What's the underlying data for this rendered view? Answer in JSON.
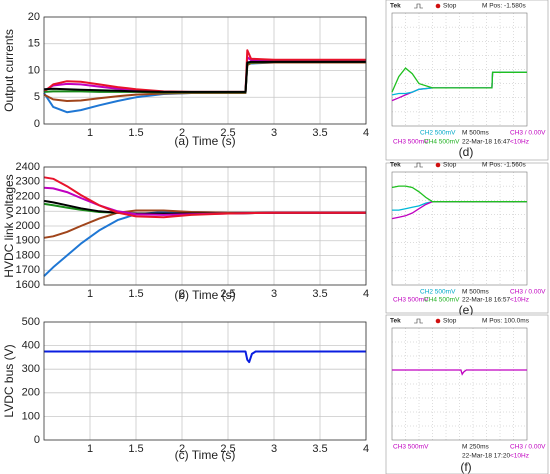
{
  "chart_data": [
    {
      "type": "line",
      "ylabel": "Output currents",
      "xlabel": "(a) Time (s)",
      "xlim": [
        0.5,
        4
      ],
      "ylim": [
        0,
        20
      ],
      "xticks": [
        1,
        1.5,
        2,
        2.5,
        3,
        3.5,
        4
      ],
      "yticks": [
        0,
        5,
        10,
        15,
        20
      ],
      "grid": true,
      "x": [
        0.5,
        0.6,
        0.75,
        0.9,
        1.1,
        1.3,
        1.5,
        1.8,
        2.1,
        2.4,
        2.69,
        2.71,
        2.75,
        3.0,
        3.5,
        4.0
      ],
      "series": [
        {
          "color": "#1f77d4",
          "values": [
            5.8,
            3.2,
            2.2,
            2.6,
            3.5,
            4.3,
            5.0,
            5.6,
            5.8,
            5.8,
            5.8,
            11.2,
            11.3,
            11.5,
            11.5,
            11.5
          ]
        },
        {
          "color": "#a0441a",
          "values": [
            5.5,
            4.6,
            4.3,
            4.4,
            4.8,
            5.2,
            5.5,
            5.7,
            5.8,
            5.8,
            5.8,
            11.0,
            11.4,
            11.5,
            11.5,
            11.5
          ]
        },
        {
          "color": "#c000c0",
          "values": [
            6.2,
            7.2,
            7.5,
            7.4,
            7.0,
            6.6,
            6.3,
            6.0,
            5.9,
            5.9,
            5.9,
            12.5,
            11.9,
            11.8,
            11.8,
            11.8
          ]
        },
        {
          "color": "#e8132b",
          "values": [
            6.0,
            7.4,
            8.0,
            7.9,
            7.4,
            6.9,
            6.5,
            6.1,
            6.0,
            6.0,
            6.0,
            13.8,
            12.2,
            12.0,
            12.0,
            12.0
          ]
        },
        {
          "color": "#1a8a1a",
          "values": [
            6.0,
            6.1,
            6.1,
            6.1,
            6.0,
            6.0,
            6.0,
            5.9,
            5.9,
            5.9,
            5.9,
            11.3,
            11.5,
            11.6,
            11.6,
            11.6
          ]
        },
        {
          "color": "#000000",
          "values": [
            6.5,
            6.6,
            6.5,
            6.4,
            6.3,
            6.2,
            6.1,
            6.0,
            6.0,
            6.0,
            6.0,
            11.5,
            11.6,
            11.6,
            11.6,
            11.6
          ]
        }
      ]
    },
    {
      "type": "line",
      "ylabel": "HVDC link voltages",
      "xlabel": "(b) Time (s)",
      "xlim": [
        0.5,
        4
      ],
      "ylim": [
        1600,
        2400
      ],
      "xticks": [
        1,
        1.5,
        2,
        2.5,
        3,
        3.5,
        4
      ],
      "yticks": [
        1600,
        1700,
        1800,
        1900,
        2000,
        2100,
        2200,
        2300,
        2400
      ],
      "grid": true,
      "x": [
        0.5,
        0.6,
        0.75,
        0.9,
        1.1,
        1.3,
        1.5,
        1.8,
        2.1,
        2.5,
        3.0,
        3.5,
        4.0
      ],
      "series": [
        {
          "color": "#1f77d4",
          "values": [
            1660,
            1720,
            1800,
            1880,
            1970,
            2040,
            2080,
            2095,
            2095,
            2090,
            2090,
            2090,
            2090
          ]
        },
        {
          "color": "#a0441a",
          "values": [
            1920,
            1930,
            1960,
            2000,
            2050,
            2090,
            2105,
            2105,
            2095,
            2090,
            2090,
            2090,
            2090
          ]
        },
        {
          "color": "#1a8a1a",
          "values": [
            2150,
            2140,
            2125,
            2110,
            2095,
            2090,
            2085,
            2085,
            2085,
            2085,
            2090,
            2090,
            2090
          ]
        },
        {
          "color": "#000000",
          "values": [
            2170,
            2160,
            2140,
            2120,
            2100,
            2090,
            2085,
            2085,
            2085,
            2085,
            2090,
            2090,
            2090
          ]
        },
        {
          "color": "#c000c0",
          "values": [
            2260,
            2255,
            2230,
            2190,
            2140,
            2100,
            2080,
            2075,
            2080,
            2085,
            2090,
            2090,
            2090
          ]
        },
        {
          "color": "#e8132b",
          "values": [
            2330,
            2320,
            2270,
            2210,
            2140,
            2090,
            2065,
            2060,
            2075,
            2085,
            2090,
            2090,
            2090
          ]
        }
      ]
    },
    {
      "type": "line",
      "ylabel": "LVDC bus (V)",
      "xlabel": "(c) Time (s)",
      "xlim": [
        0.5,
        4
      ],
      "ylim": [
        0,
        500
      ],
      "xticks": [
        1,
        1.5,
        2,
        2.5,
        3,
        3.5,
        4
      ],
      "yticks": [
        0,
        100,
        200,
        300,
        400,
        500
      ],
      "grid": true,
      "x": [
        0.5,
        2.69,
        2.71,
        2.73,
        2.76,
        2.8,
        4.0
      ],
      "series": [
        {
          "color": "#0a1ee0",
          "values": [
            375,
            375,
            340,
            330,
            365,
            375,
            375
          ]
        }
      ]
    },
    {
      "type": "oscilloscope",
      "caption": "(d)",
      "header": {
        "brand": "Tek",
        "status": "Stop",
        "position": "M Pos: -1.580s"
      },
      "footer": [
        {
          "text": "CH2  500mV",
          "color": "#00a8c8"
        },
        {
          "text": "M 500ms",
          "color": "#222222"
        },
        {
          "text": "CH3 / 0.00V",
          "color": "#c000c0"
        },
        {
          "text": "CH3  500mV",
          "color": "#c000c0"
        },
        {
          "text": "CH4  500mV",
          "color": "#20b020"
        },
        {
          "text": "22-Mar-18 16:47",
          "color": "#222222"
        },
        {
          "text": "<10Hz",
          "color": "#c000c0"
        }
      ],
      "xlim": [
        0,
        10
      ],
      "ylim": [
        0,
        8
      ],
      "x": [
        0,
        0.5,
        1,
        1.5,
        2,
        3,
        4,
        5,
        6,
        7.4,
        7.45,
        8,
        10
      ],
      "series": [
        {
          "color": "#c000c0",
          "values": [
            1.8,
            2.0,
            2.2,
            2.4,
            2.6,
            2.7,
            2.7,
            2.7,
            2.7,
            2.7,
            3.8,
            3.8,
            3.8
          ]
        },
        {
          "color": "#00b8d8",
          "values": [
            2.2,
            2.3,
            2.3,
            2.4,
            2.6,
            2.7,
            2.7,
            2.7,
            2.7,
            2.7,
            3.8,
            3.8,
            3.8
          ]
        },
        {
          "color": "#20c020",
          "values": [
            2.4,
            3.5,
            4.1,
            3.7,
            3.0,
            2.7,
            2.7,
            2.7,
            2.7,
            2.7,
            3.8,
            3.8,
            3.8
          ]
        }
      ]
    },
    {
      "type": "oscilloscope",
      "caption": "(e)",
      "header": {
        "brand": "Tek",
        "status": "Stop",
        "position": "M Pos: -1.560s"
      },
      "footer": [
        {
          "text": "CH2  500mV",
          "color": "#00a8c8"
        },
        {
          "text": "M 500ms",
          "color": "#222222"
        },
        {
          "text": "CH3 / 0.00V",
          "color": "#c000c0"
        },
        {
          "text": "CH3  500mV",
          "color": "#c000c0"
        },
        {
          "text": "CH4  500mV",
          "color": "#20b020"
        },
        {
          "text": "22-Mar-18 16:57",
          "color": "#222222"
        },
        {
          "text": "<10Hz",
          "color": "#c000c0"
        }
      ],
      "xlim": [
        0,
        10
      ],
      "ylim": [
        0,
        8
      ],
      "x": [
        0,
        0.5,
        1,
        1.5,
        2,
        2.5,
        3,
        4,
        10
      ],
      "series": [
        {
          "color": "#00b8d8",
          "values": [
            5.3,
            5.3,
            5.4,
            5.5,
            5.6,
            5.8,
            5.9,
            5.9,
            5.9
          ]
        },
        {
          "color": "#c000c0",
          "values": [
            4.7,
            4.8,
            4.9,
            5.1,
            5.4,
            5.7,
            5.9,
            5.9,
            5.9
          ]
        },
        {
          "color": "#20c020",
          "values": [
            6.9,
            7.0,
            7.0,
            6.9,
            6.6,
            6.2,
            5.9,
            5.9,
            5.9
          ]
        }
      ]
    },
    {
      "type": "oscilloscope",
      "caption": "(f)",
      "header": {
        "brand": "Tek",
        "status": "Stop",
        "position": "M Pos: 100.0ms"
      },
      "footer": [
        {
          "text": "CH3  500mV",
          "color": "#c000c0"
        },
        {
          "text": "M 250ms",
          "color": "#222222"
        },
        {
          "text": "CH3 / 0.00V",
          "color": "#c000c0"
        },
        {
          "text": "22-Mar-18 17:20",
          "color": "#222222"
        },
        {
          "text": "<10Hz",
          "color": "#c000c0"
        }
      ],
      "xlim": [
        0,
        10
      ],
      "ylim": [
        0,
        8
      ],
      "x": [
        0,
        5.1,
        5.2,
        5.3,
        5.5,
        10
      ],
      "series": [
        {
          "color": "#c000c0",
          "values": [
            5.0,
            5.0,
            4.7,
            4.85,
            5.0,
            5.0
          ]
        }
      ]
    }
  ]
}
